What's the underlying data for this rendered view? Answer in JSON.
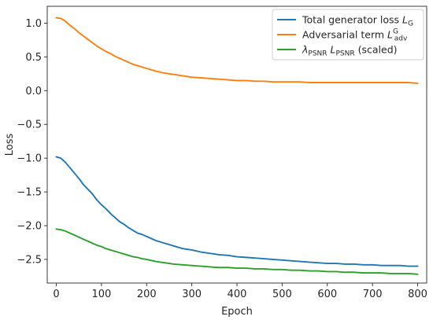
{
  "chart_data": {
    "type": "line",
    "title": "",
    "xlabel": "Epoch",
    "ylabel": "Loss",
    "xlim": [
      -20,
      820
    ],
    "ylim": [
      -2.85,
      1.25
    ],
    "xticks": [
      0,
      100,
      200,
      300,
      400,
      500,
      600,
      700,
      800
    ],
    "yticks": [
      1.0,
      0.5,
      0.0,
      -0.5,
      -1.0,
      -1.5,
      -2.0,
      -2.5
    ],
    "ytick_labels": [
      "1.0",
      "0.5",
      "0.0",
      "−0.5",
      "−1.0",
      "−1.5",
      "−2.0",
      "−2.5"
    ],
    "grid": false,
    "legend_position": "top-right",
    "series": [
      {
        "name": "Total generator loss L_G",
        "legend": {
          "pre": "Total generator loss ",
          "italic": "L",
          "sub": "G",
          "sup": "",
          "post": ""
        },
        "color": "#1f77b4",
        "x": [
          0,
          10,
          20,
          30,
          40,
          50,
          60,
          70,
          80,
          90,
          100,
          110,
          120,
          130,
          140,
          150,
          160,
          170,
          180,
          190,
          200,
          220,
          240,
          260,
          280,
          300,
          320,
          340,
          360,
          380,
          400,
          420,
          440,
          460,
          480,
          500,
          520,
          540,
          560,
          580,
          600,
          620,
          640,
          660,
          680,
          700,
          720,
          740,
          760,
          780,
          800
        ],
        "y": [
          -0.98,
          -1.0,
          -1.06,
          -1.14,
          -1.22,
          -1.3,
          -1.39,
          -1.46,
          -1.53,
          -1.62,
          -1.69,
          -1.75,
          -1.82,
          -1.88,
          -1.94,
          -1.98,
          -2.03,
          -2.07,
          -2.11,
          -2.13,
          -2.16,
          -2.22,
          -2.26,
          -2.3,
          -2.34,
          -2.36,
          -2.39,
          -2.41,
          -2.43,
          -2.44,
          -2.46,
          -2.47,
          -2.48,
          -2.49,
          -2.5,
          -2.51,
          -2.52,
          -2.53,
          -2.54,
          -2.55,
          -2.56,
          -2.56,
          -2.57,
          -2.57,
          -2.58,
          -2.58,
          -2.59,
          -2.59,
          -2.59,
          -2.6,
          -2.6
        ]
      },
      {
        "name": "Adversarial term L_adv^G",
        "legend": {
          "pre": "Adversarial term ",
          "italic": "L",
          "sub": "adv",
          "sup": "G",
          "post": ""
        },
        "color": "#ff7f0e",
        "x": [
          0,
          10,
          20,
          30,
          40,
          50,
          60,
          70,
          80,
          90,
          100,
          110,
          120,
          130,
          140,
          150,
          160,
          170,
          180,
          190,
          200,
          220,
          240,
          260,
          280,
          300,
          320,
          340,
          360,
          380,
          400,
          420,
          440,
          460,
          480,
          500,
          520,
          540,
          560,
          580,
          600,
          620,
          640,
          660,
          680,
          700,
          720,
          740,
          760,
          780,
          800
        ],
        "y": [
          1.08,
          1.07,
          1.03,
          0.97,
          0.92,
          0.86,
          0.81,
          0.76,
          0.71,
          0.66,
          0.62,
          0.58,
          0.55,
          0.51,
          0.48,
          0.45,
          0.42,
          0.39,
          0.37,
          0.35,
          0.33,
          0.29,
          0.26,
          0.24,
          0.22,
          0.2,
          0.19,
          0.18,
          0.17,
          0.16,
          0.15,
          0.15,
          0.14,
          0.14,
          0.13,
          0.13,
          0.13,
          0.13,
          0.12,
          0.12,
          0.12,
          0.12,
          0.12,
          0.12,
          0.12,
          0.12,
          0.12,
          0.12,
          0.12,
          0.12,
          0.11
        ]
      },
      {
        "name": "λ_PSNR L_PSNR (scaled)",
        "legend": {
          "pre": "",
          "italic": "λ",
          "sub": "PSNR",
          "sup": "",
          "italic2": "L",
          "sub2": "PSNR",
          "post": " (scaled)"
        },
        "color": "#2ca02c",
        "x": [
          0,
          10,
          20,
          30,
          40,
          50,
          60,
          70,
          80,
          90,
          100,
          110,
          120,
          130,
          140,
          150,
          160,
          170,
          180,
          190,
          200,
          220,
          240,
          260,
          280,
          300,
          320,
          340,
          360,
          380,
          400,
          420,
          440,
          460,
          480,
          500,
          520,
          540,
          560,
          580,
          600,
          620,
          640,
          660,
          680,
          700,
          720,
          740,
          760,
          780,
          800
        ],
        "y": [
          -2.05,
          -2.06,
          -2.08,
          -2.11,
          -2.14,
          -2.17,
          -2.2,
          -2.23,
          -2.26,
          -2.29,
          -2.31,
          -2.34,
          -2.36,
          -2.38,
          -2.4,
          -2.42,
          -2.44,
          -2.46,
          -2.47,
          -2.49,
          -2.5,
          -2.53,
          -2.55,
          -2.57,
          -2.58,
          -2.59,
          -2.6,
          -2.61,
          -2.62,
          -2.62,
          -2.63,
          -2.63,
          -2.64,
          -2.64,
          -2.65,
          -2.65,
          -2.66,
          -2.66,
          -2.67,
          -2.67,
          -2.68,
          -2.68,
          -2.69,
          -2.69,
          -2.7,
          -2.7,
          -2.7,
          -2.71,
          -2.71,
          -2.71,
          -2.72
        ]
      }
    ]
  }
}
